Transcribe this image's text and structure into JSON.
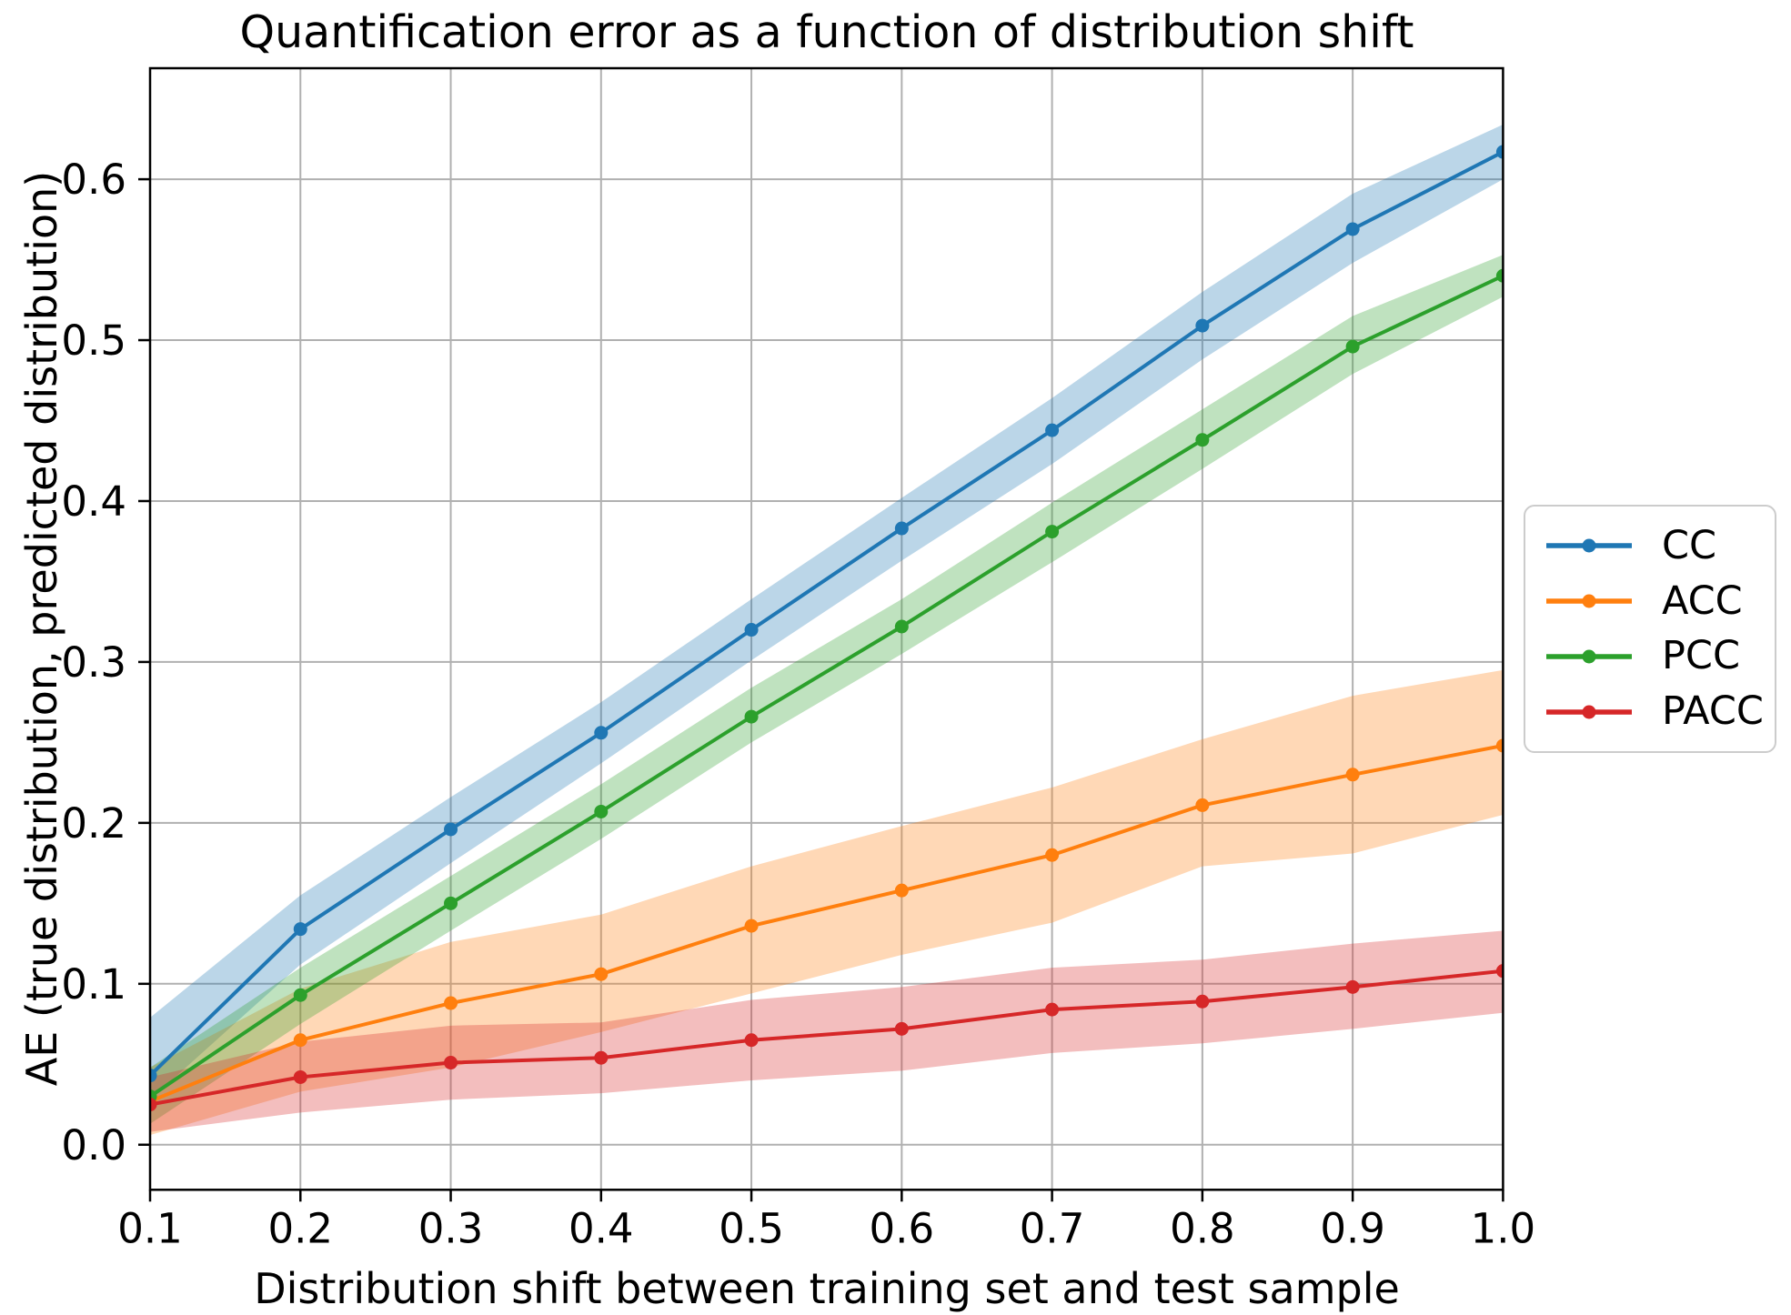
{
  "chart_data": {
    "type": "line",
    "title": "Quantification error as a function of distribution shift",
    "xlabel": "Distribution shift between training set and test sample",
    "ylabel": "AE (true distribution, predicted distribution)",
    "x": [
      0.1,
      0.2,
      0.3,
      0.4,
      0.5,
      0.6,
      0.7,
      0.8,
      0.9,
      1.0
    ],
    "xticklabels": [
      "0.1",
      "0.2",
      "0.3",
      "0.4",
      "0.5",
      "0.6",
      "0.7",
      "0.8",
      "0.9",
      "1.0"
    ],
    "yticks": [
      0.0,
      0.1,
      0.2,
      0.3,
      0.4,
      0.5,
      0.6
    ],
    "yticklabels": [
      "0.0",
      "0.1",
      "0.2",
      "0.3",
      "0.4",
      "0.5",
      "0.6"
    ],
    "xlim": [
      0.1,
      1.0
    ],
    "ylim": [
      -0.028,
      0.669
    ],
    "grid": true,
    "legend_position": "outside center right",
    "band_alpha": 0.3,
    "marker": "dot",
    "series": [
      {
        "name": "CC",
        "color": "#1f77b4",
        "values": [
          0.043,
          0.134,
          0.196,
          0.256,
          0.32,
          0.383,
          0.444,
          0.509,
          0.569,
          0.617
        ],
        "band_lower": [
          0.028,
          0.112,
          0.175,
          0.237,
          0.301,
          0.363,
          0.423,
          0.488,
          0.548,
          0.6
        ],
        "band_upper": [
          0.079,
          0.155,
          0.216,
          0.275,
          0.339,
          0.402,
          0.464,
          0.53,
          0.591,
          0.634
        ]
      },
      {
        "name": "ACC",
        "color": "#ff7f0e",
        "values": [
          0.027,
          0.065,
          0.088,
          0.106,
          0.136,
          0.158,
          0.18,
          0.211,
          0.23,
          0.248
        ],
        "band_lower": [
          0.006,
          0.033,
          0.048,
          0.07,
          0.094,
          0.118,
          0.138,
          0.173,
          0.181,
          0.205
        ],
        "band_upper": [
          0.048,
          0.097,
          0.126,
          0.143,
          0.173,
          0.198,
          0.222,
          0.252,
          0.279,
          0.295
        ]
      },
      {
        "name": "PCC",
        "color": "#2ca02c",
        "values": [
          0.03,
          0.093,
          0.15,
          0.207,
          0.266,
          0.322,
          0.381,
          0.438,
          0.496,
          0.54
        ],
        "band_lower": [
          0.013,
          0.075,
          0.133,
          0.19,
          0.25,
          0.305,
          0.362,
          0.42,
          0.479,
          0.527
        ],
        "band_upper": [
          0.048,
          0.11,
          0.167,
          0.224,
          0.284,
          0.339,
          0.399,
          0.457,
          0.515,
          0.553
        ]
      },
      {
        "name": "PACC",
        "color": "#d62728",
        "values": [
          0.025,
          0.042,
          0.051,
          0.054,
          0.065,
          0.072,
          0.084,
          0.089,
          0.098,
          0.108
        ],
        "band_lower": [
          0.008,
          0.02,
          0.028,
          0.032,
          0.04,
          0.046,
          0.057,
          0.063,
          0.072,
          0.082
        ],
        "band_upper": [
          0.042,
          0.064,
          0.074,
          0.076,
          0.09,
          0.098,
          0.11,
          0.115,
          0.125,
          0.133
        ]
      }
    ]
  },
  "style": {
    "background": "#ffffff",
    "grid_color": "#b0b0b0",
    "spine_color": "#000000",
    "text_color": "#000000",
    "legend_border": "#cccccc"
  }
}
